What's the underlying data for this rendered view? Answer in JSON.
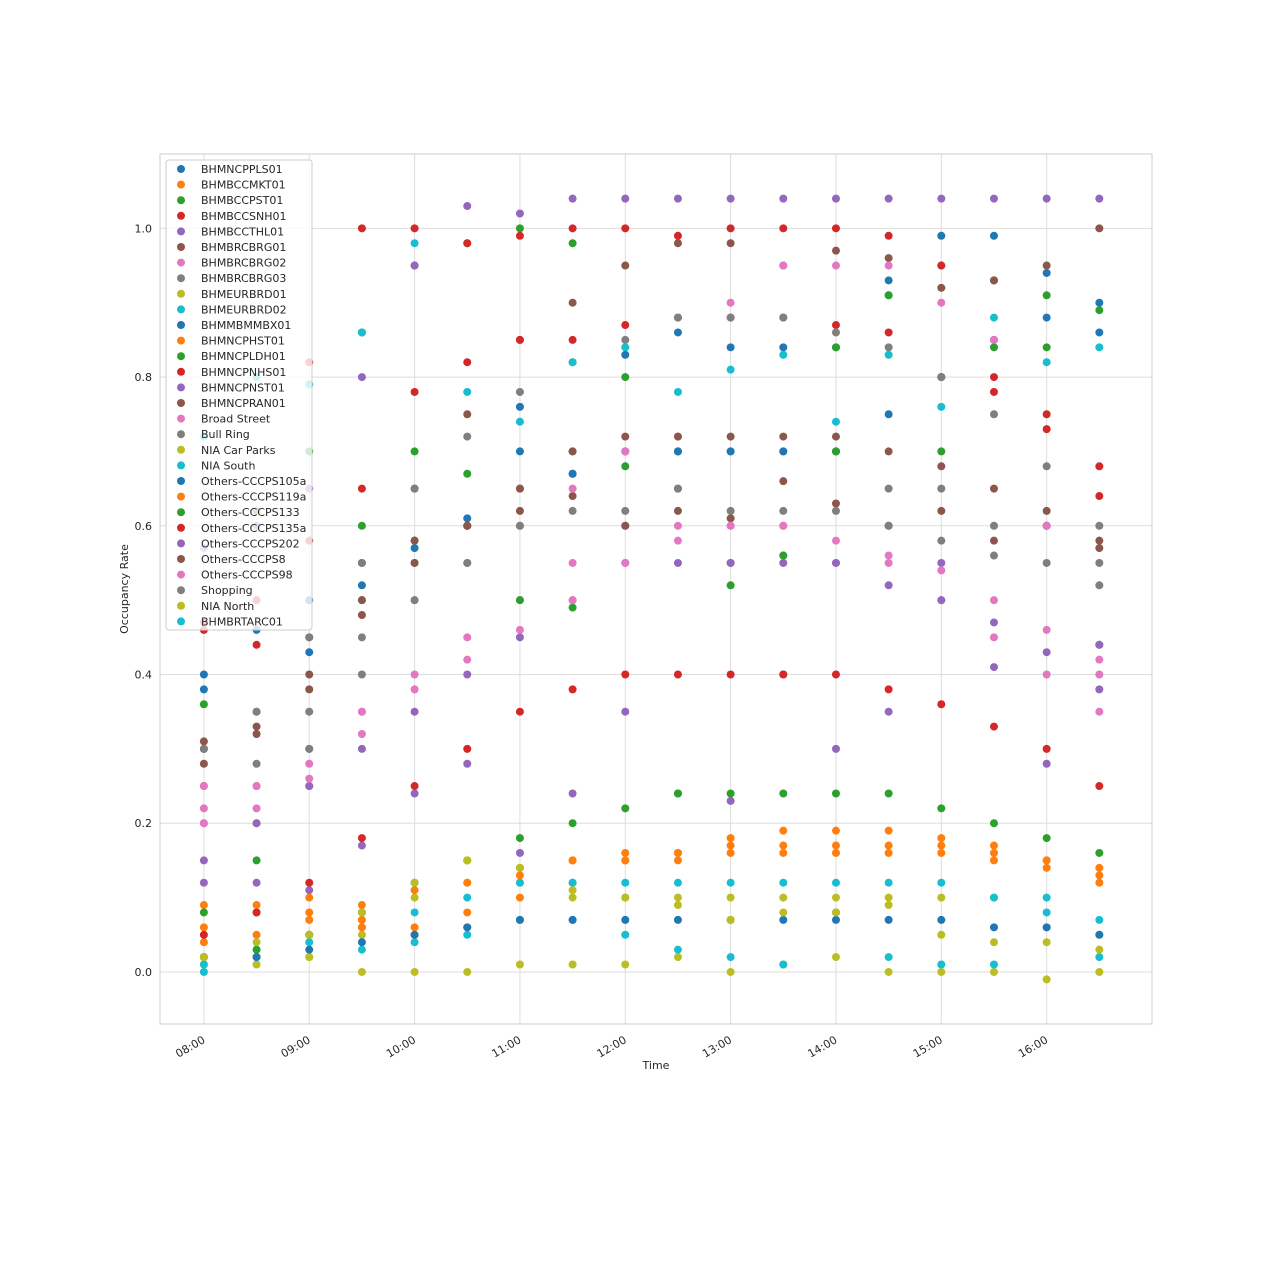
{
  "chart_data": {
    "type": "scatter",
    "title": "",
    "xlabel": "Time",
    "ylabel": "Occupancy Rate",
    "x_tick_labels": [
      "08:00",
      "09:00",
      "10:00",
      "11:00",
      "12:00",
      "13:00",
      "14:00",
      "15:00",
      "16:00"
    ],
    "y_tick_labels": [
      "0.0",
      "0.2",
      "0.4",
      "0.6",
      "0.8",
      "1.0"
    ],
    "y_ticks": [
      0.0,
      0.2,
      0.4,
      0.6,
      0.8,
      1.0
    ],
    "xlim": [
      "07:35",
      "17:00"
    ],
    "ylim": [
      -0.07,
      1.1
    ],
    "grid": true,
    "legend_position": "top-left",
    "x_times": [
      "08:00",
      "08:30",
      "09:00",
      "09:30",
      "10:00",
      "10:30",
      "11:00",
      "11:30",
      "12:00",
      "12:30",
      "13:00",
      "13:30",
      "14:00",
      "14:30",
      "15:00",
      "15:30",
      "16:00",
      "16:30"
    ],
    "series": [
      {
        "name": "BHMNCPPLS01",
        "color": "#1f77b4",
        "values": [
          0.4,
          0.5,
          0.43,
          0.5,
          0.57,
          0.6,
          0.76,
          0.67,
          0.83,
          0.86,
          0.84,
          0.84,
          0.84,
          0.93,
          0.99,
          0.99,
          0.94,
          0.9
        ]
      },
      {
        "name": "BHMBCCMKT01",
        "color": "#ff7f0e",
        "values": [
          0.06,
          0.08,
          0.08,
          0.07,
          0.05,
          0.06,
          0.1,
          0.12,
          0.15,
          0.15,
          0.17,
          0.17,
          0.17,
          0.17,
          0.17,
          0.16,
          0.15,
          0.13
        ]
      },
      {
        "name": "BHMBCCPST01",
        "color": "#2ca02c",
        "values": [
          0.36,
          0.62,
          0.7,
          0.86,
          0.95,
          0.98,
          1.0,
          0.98,
          0.8,
          0.7,
          0.55,
          0.56,
          0.84,
          0.91,
          0.95,
          0.93,
          0.91,
          0.89
        ]
      },
      {
        "name": "BHMBCCSNH01",
        "color": "#d62728",
        "values": [
          0.47,
          0.5,
          0.82,
          1.0,
          1.0,
          0.98,
          0.99,
          1.0,
          1.0,
          0.99,
          1.0,
          1.0,
          1.0,
          0.99,
          0.95,
          0.8,
          0.75,
          0.68
        ]
      },
      {
        "name": "BHMBCCTHL01",
        "color": "#9467bd",
        "values": [
          0.57,
          0.6,
          0.65,
          0.8,
          0.95,
          1.03,
          1.02,
          1.04,
          1.04,
          1.04,
          1.04,
          1.04,
          1.04,
          1.04,
          1.04,
          1.04,
          1.04,
          1.04
        ]
      },
      {
        "name": "BHMBRCBRG01",
        "color": "#8c564b",
        "values": [
          0.3,
          0.35,
          0.45,
          0.55,
          0.65,
          0.75,
          0.85,
          0.9,
          0.95,
          0.98,
          0.98,
          0.95,
          0.97,
          0.96,
          0.92,
          0.93,
          0.95,
          1.0
        ]
      },
      {
        "name": "BHMBRCBRG02",
        "color": "#e377c2",
        "values": [
          0.22,
          0.25,
          0.3,
          0.35,
          0.4,
          0.45,
          0.5,
          0.55,
          0.6,
          0.6,
          0.6,
          0.6,
          0.55,
          0.55,
          0.5,
          0.45,
          0.4,
          0.35
        ]
      },
      {
        "name": "BHMBRCBRG03",
        "color": "#7f7f7f",
        "values": [
          0.25,
          0.28,
          0.35,
          0.45,
          0.55,
          0.6,
          0.65,
          0.7,
          0.7,
          0.7,
          0.7,
          0.7,
          0.7,
          0.65,
          0.65,
          0.6,
          0.6,
          0.55
        ]
      },
      {
        "name": "BHMEURBRD01",
        "color": "#bcbd22",
        "values": [
          0.02,
          0.02,
          0.02,
          0.05,
          0.1,
          0.12,
          0.12,
          0.1,
          0.1,
          0.1,
          0.1,
          0.1,
          0.1,
          0.1,
          0.1,
          0.1,
          0.06,
          0.05
        ]
      },
      {
        "name": "BHMEURBRD02",
        "color": "#17becf",
        "values": [
          0.0,
          0.02,
          0.04,
          0.06,
          0.08,
          0.1,
          0.12,
          0.12,
          0.12,
          0.12,
          0.12,
          0.12,
          0.12,
          0.12,
          0.12,
          0.1,
          0.1,
          0.07
        ]
      },
      {
        "name": "BHMMBMMBX01",
        "color": "#1f77b4",
        "values": [
          0.38,
          0.46,
          0.5,
          0.52,
          0.58,
          0.61,
          0.7,
          0.67,
          0.7,
          0.7,
          0.7,
          0.7,
          0.7,
          0.75,
          0.8,
          0.85,
          0.88,
          0.86
        ]
      },
      {
        "name": "BHMNCPHST01",
        "color": "#ff7f0e",
        "values": [
          0.09,
          0.09,
          0.1,
          0.06,
          0.06,
          0.08,
          0.13,
          0.15,
          0.15,
          0.16,
          0.18,
          0.19,
          0.19,
          0.19,
          0.18,
          0.17,
          0.15,
          0.14
        ]
      },
      {
        "name": "BHMNCPLDH01",
        "color": "#2ca02c",
        "values": [
          0.08,
          0.15,
          0.25,
          0.6,
          0.7,
          0.67,
          0.5,
          0.49,
          0.68,
          0.65,
          0.52,
          0.56,
          0.7,
          0.91,
          0.7,
          0.84,
          0.84,
          0.44
        ]
      },
      {
        "name": "BHMNCPNHS01",
        "color": "#d62728",
        "values": [
          0.46,
          0.44,
          0.58,
          0.65,
          0.78,
          0.82,
          0.85,
          0.85,
          0.87,
          0.88,
          0.88,
          0.88,
          0.87,
          0.86,
          0.8,
          0.78,
          0.73,
          0.64
        ]
      },
      {
        "name": "BHMNCPNST01",
        "color": "#9467bd",
        "values": [
          0.12,
          0.12,
          0.11,
          0.17,
          0.24,
          0.28,
          0.16,
          0.24,
          0.35,
          0.24,
          0.23,
          0.4,
          0.3,
          0.35,
          0.55,
          0.41,
          0.28,
          0.44
        ]
      },
      {
        "name": "BHMNCPRAN01",
        "color": "#8c564b",
        "values": [
          0.31,
          0.32,
          0.38,
          0.5,
          0.58,
          0.6,
          0.62,
          0.64,
          0.6,
          0.62,
          0.61,
          0.66,
          0.63,
          0.6,
          0.62,
          0.58,
          0.6,
          0.57
        ]
      },
      {
        "name": "Broad Street",
        "color": "#e377c2",
        "values": [
          0.25,
          0.25,
          0.28,
          0.35,
          0.5,
          0.55,
          0.6,
          0.65,
          0.7,
          0.72,
          0.9,
          0.95,
          0.95,
          0.95,
          0.9,
          0.85,
          0.6,
          0.4
        ]
      },
      {
        "name": "Bull Ring",
        "color": "#7f7f7f",
        "values": [
          0.2,
          0.2,
          0.3,
          0.4,
          0.5,
          0.55,
          0.6,
          0.62,
          0.62,
          0.65,
          0.62,
          0.62,
          0.62,
          0.6,
          0.58,
          0.56,
          0.55,
          0.52
        ]
      },
      {
        "name": "NIA Car Parks",
        "color": "#bcbd22",
        "values": [
          0.01,
          0.01,
          0.02,
          0.0,
          0.0,
          0.0,
          0.01,
          0.01,
          0.01,
          0.02,
          0.0,
          0.01,
          0.02,
          0.0,
          0.0,
          0.0,
          -0.01,
          0.0
        ]
      },
      {
        "name": "NIA South",
        "color": "#17becf",
        "values": [
          0.01,
          0.03,
          0.05,
          0.03,
          0.04,
          0.05,
          0.07,
          0.07,
          0.05,
          0.03,
          0.02,
          0.01,
          0.08,
          0.02,
          0.01,
          0.01,
          0.08,
          0.02
        ]
      },
      {
        "name": "Others-CCCPS105a",
        "color": "#1f77b4",
        "values": [
          0.02,
          0.02,
          0.03,
          0.04,
          0.05,
          0.06,
          0.07,
          0.07,
          0.07,
          0.07,
          0.07,
          0.07,
          0.07,
          0.07,
          0.07,
          0.06,
          0.06,
          0.05
        ]
      },
      {
        "name": "Others-CCCPS119a",
        "color": "#ff7f0e",
        "values": [
          0.04,
          0.05,
          0.07,
          0.09,
          0.11,
          0.12,
          0.14,
          0.15,
          0.16,
          0.16,
          0.16,
          0.16,
          0.16,
          0.16,
          0.16,
          0.15,
          0.14,
          0.12
        ]
      },
      {
        "name": "Others-CCCPS133",
        "color": "#2ca02c",
        "values": [
          0.02,
          0.03,
          0.05,
          0.08,
          0.12,
          0.15,
          0.18,
          0.2,
          0.22,
          0.24,
          0.24,
          0.24,
          0.24,
          0.24,
          0.22,
          0.2,
          0.18,
          0.16
        ]
      },
      {
        "name": "Others-CCCPS135a",
        "color": "#d62728",
        "values": [
          0.05,
          0.08,
          0.12,
          0.18,
          0.25,
          0.3,
          0.35,
          0.38,
          0.4,
          0.4,
          0.4,
          0.4,
          0.4,
          0.38,
          0.36,
          0.33,
          0.3,
          0.25
        ]
      },
      {
        "name": "Others-CCCPS202",
        "color": "#9467bd",
        "values": [
          0.15,
          0.2,
          0.25,
          0.3,
          0.35,
          0.4,
          0.45,
          0.5,
          0.55,
          0.55,
          0.55,
          0.55,
          0.55,
          0.52,
          0.5,
          0.47,
          0.43,
          0.38
        ]
      },
      {
        "name": "Others-CCCPS8",
        "color": "#8c564b",
        "values": [
          0.28,
          0.33,
          0.4,
          0.48,
          0.55,
          0.6,
          0.65,
          0.7,
          0.72,
          0.72,
          0.72,
          0.72,
          0.72,
          0.7,
          0.68,
          0.65,
          0.62,
          0.58
        ]
      },
      {
        "name": "Others-CCCPS98",
        "color": "#e377c2",
        "values": [
          0.2,
          0.22,
          0.26,
          0.32,
          0.38,
          0.42,
          0.46,
          0.5,
          0.55,
          0.58,
          0.6,
          0.6,
          0.58,
          0.56,
          0.54,
          0.5,
          0.46,
          0.42
        ]
      },
      {
        "name": "Shopping",
        "color": "#7f7f7f",
        "values": [
          0.3,
          0.35,
          0.45,
          0.55,
          0.65,
          0.72,
          0.78,
          0.82,
          0.85,
          0.88,
          0.88,
          0.88,
          0.86,
          0.84,
          0.8,
          0.75,
          0.68,
          0.6
        ]
      },
      {
        "name": "NIA North",
        "color": "#bcbd22",
        "values": [
          0.02,
          0.04,
          0.05,
          0.08,
          0.12,
          0.15,
          0.14,
          0.11,
          0.1,
          0.09,
          0.07,
          0.08,
          0.08,
          0.09,
          0.05,
          0.04,
          0.04,
          0.03
        ]
      },
      {
        "name": "BHMBRTARC01",
        "color": "#17becf",
        "values": [
          0.72,
          0.8,
          0.79,
          0.86,
          0.98,
          0.78,
          0.74,
          0.82,
          0.84,
          0.78,
          0.81,
          0.83,
          0.74,
          0.83,
          0.76,
          0.88,
          0.82,
          0.84
        ]
      }
    ]
  }
}
